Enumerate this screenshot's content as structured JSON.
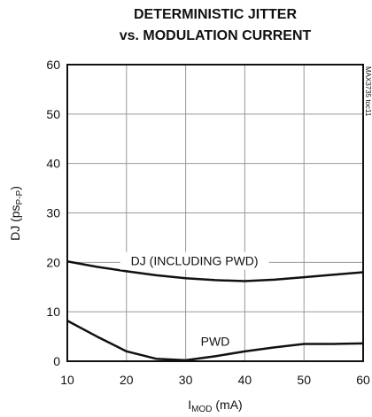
{
  "chart_data": {
    "type": "line",
    "title": [
      "DETERMINISTIC JITTER",
      "vs. MODULATION CURRENT"
    ],
    "x_label": {
      "text": "I",
      "subscript": "MOD",
      "suffix": " (mA)"
    },
    "y_label": {
      "text": "DJ (ps",
      "subscript": "P-P",
      "suffix": ")"
    },
    "side_note": "MAX3735 toc11",
    "x": [
      10,
      15,
      20,
      25,
      30,
      35,
      40,
      45,
      50,
      55,
      60
    ],
    "series": [
      {
        "name": "DJ (INCLUDING PWD)",
        "color": "#111111",
        "values": [
          20.2,
          19.1,
          18.2,
          17.4,
          16.8,
          16.4,
          16.2,
          16.5,
          17,
          17.5,
          18
        ]
      },
      {
        "name": "PWD",
        "color": "#111111",
        "values": [
          8.2,
          5,
          2,
          0.5,
          0.2,
          1,
          2,
          2.8,
          3.5,
          3.5,
          3.6
        ]
      }
    ],
    "xlim": [
      10,
      60
    ],
    "xticks": [
      10,
      20,
      30,
      40,
      50,
      60
    ],
    "ylim": [
      0,
      60
    ],
    "yticks": [
      0,
      10,
      20,
      30,
      40,
      50,
      60
    ],
    "grid": true
  }
}
